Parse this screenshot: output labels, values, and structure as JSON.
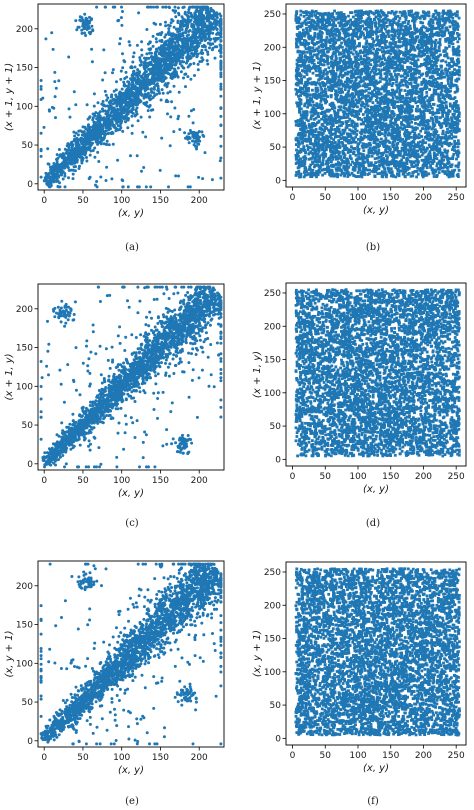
{
  "figure": {
    "captions": [
      "(a)",
      "(b)",
      "(c)",
      "(d)",
      "(e)",
      "(f)"
    ]
  },
  "chart_data": [
    {
      "panel": "a",
      "type": "scatter",
      "color": "#1f77b4",
      "xlabel": "(x, y)",
      "ylabel": "(x + 1, y + 1)",
      "xlim": [
        -8,
        232
      ],
      "ylim": [
        -8,
        232
      ],
      "xticks": [
        0,
        50,
        100,
        150,
        200
      ],
      "yticks": [
        0,
        50,
        100,
        150,
        200
      ],
      "distribution": "correlated",
      "n_points": 2600,
      "spread": 12,
      "clusters": [
        {
          "x": 55,
          "y": 205
        },
        {
          "x": 195,
          "y": 58
        }
      ]
    },
    {
      "panel": "b",
      "type": "scatter",
      "color": "#1f77b4",
      "xlabel": "(x, y)",
      "ylabel": "(x + 1, y + 1)",
      "xlim": [
        -10,
        265
      ],
      "ylim": [
        -10,
        265
      ],
      "xticks": [
        0,
        50,
        100,
        150,
        200,
        250
      ],
      "yticks": [
        0,
        50,
        100,
        150,
        200,
        250
      ],
      "distribution": "uniform",
      "range": [
        5,
        255
      ]
    },
    {
      "panel": "c",
      "type": "scatter",
      "color": "#1f77b4",
      "xlabel": "(x, y)",
      "ylabel": "(x + 1, y)",
      "xlim": [
        -8,
        232
      ],
      "ylim": [
        -8,
        232
      ],
      "xticks": [
        0,
        50,
        100,
        150,
        200
      ],
      "yticks": [
        0,
        50,
        100,
        150,
        200
      ],
      "distribution": "correlated",
      "n_points": 2600,
      "spread": 10,
      "clusters": [
        {
          "x": 25,
          "y": 195
        },
        {
          "x": 180,
          "y": 25
        }
      ]
    },
    {
      "panel": "d",
      "type": "scatter",
      "color": "#1f77b4",
      "xlabel": "(x, y)",
      "ylabel": "(x + 1, y)",
      "xlim": [
        -10,
        265
      ],
      "ylim": [
        -10,
        265
      ],
      "xticks": [
        0,
        50,
        100,
        150,
        200,
        250
      ],
      "yticks": [
        0,
        50,
        100,
        150,
        200,
        250
      ],
      "distribution": "uniform",
      "range": [
        5,
        255
      ]
    },
    {
      "panel": "e",
      "type": "scatter",
      "color": "#1f77b4",
      "xlabel": "(x, y)",
      "ylabel": "(x, y + 1)",
      "xlim": [
        -8,
        232
      ],
      "ylim": [
        -8,
        232
      ],
      "xticks": [
        0,
        50,
        100,
        150,
        200
      ],
      "yticks": [
        0,
        50,
        100,
        150,
        200
      ],
      "distribution": "correlated",
      "n_points": 2600,
      "spread": 11,
      "clusters": [
        {
          "x": 55,
          "y": 205
        },
        {
          "x": 185,
          "y": 60
        }
      ]
    },
    {
      "panel": "f",
      "type": "scatter",
      "color": "#1f77b4",
      "xlabel": "(x, y)",
      "ylabel": "(x, y + 1)",
      "xlim": [
        -10,
        265
      ],
      "ylim": [
        -10,
        265
      ],
      "xticks": [
        0,
        50,
        100,
        150,
        200,
        250
      ],
      "yticks": [
        0,
        50,
        100,
        150,
        200,
        250
      ],
      "distribution": "uniform",
      "range": [
        5,
        255
      ]
    }
  ]
}
